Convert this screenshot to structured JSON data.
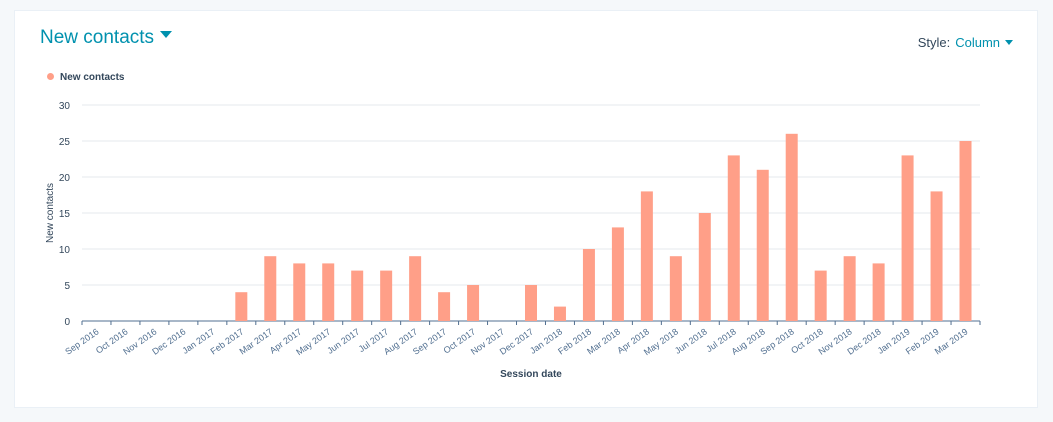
{
  "header": {
    "title": "New contacts",
    "style_label": "Style:",
    "style_value": "Column"
  },
  "legend": {
    "label": "New contacts"
  },
  "colors": {
    "series": "#ff9f88",
    "accent": "#0091ae",
    "grid": "#e6eaee",
    "axis": "#516f90"
  },
  "chart_data": {
    "type": "bar",
    "xlabel": "Session date",
    "ylabel": "New contacts",
    "ylim": [
      0,
      30
    ],
    "yticks": [
      0,
      5,
      10,
      15,
      20,
      25,
      30
    ],
    "categories": [
      "Sep 2016",
      "Oct 2016",
      "Nov 2016",
      "Dec 2016",
      "Jan 2017",
      "Feb 2017",
      "Mar 2017",
      "Apr 2017",
      "May 2017",
      "Jun 2017",
      "Jul 2017",
      "Aug 2017",
      "Sep 2017",
      "Oct 2017",
      "Nov 2017",
      "Dec 2017",
      "Jan 2018",
      "Feb 2018",
      "Mar 2018",
      "Apr 2018",
      "May 2018",
      "Jun 2018",
      "Jul 2018",
      "Aug 2018",
      "Sep 2018",
      "Oct 2018",
      "Nov 2018",
      "Dec 2018",
      "Jan 2019",
      "Feb 2019",
      "Mar 2019"
    ],
    "series": [
      {
        "name": "New contacts",
        "values": [
          0,
          0,
          0,
          0,
          0,
          4,
          9,
          8,
          8,
          7,
          7,
          9,
          4,
          5,
          0,
          5,
          2,
          10,
          13,
          18,
          9,
          15,
          23,
          21,
          26,
          7,
          9,
          8,
          23,
          18,
          25
        ]
      }
    ]
  }
}
